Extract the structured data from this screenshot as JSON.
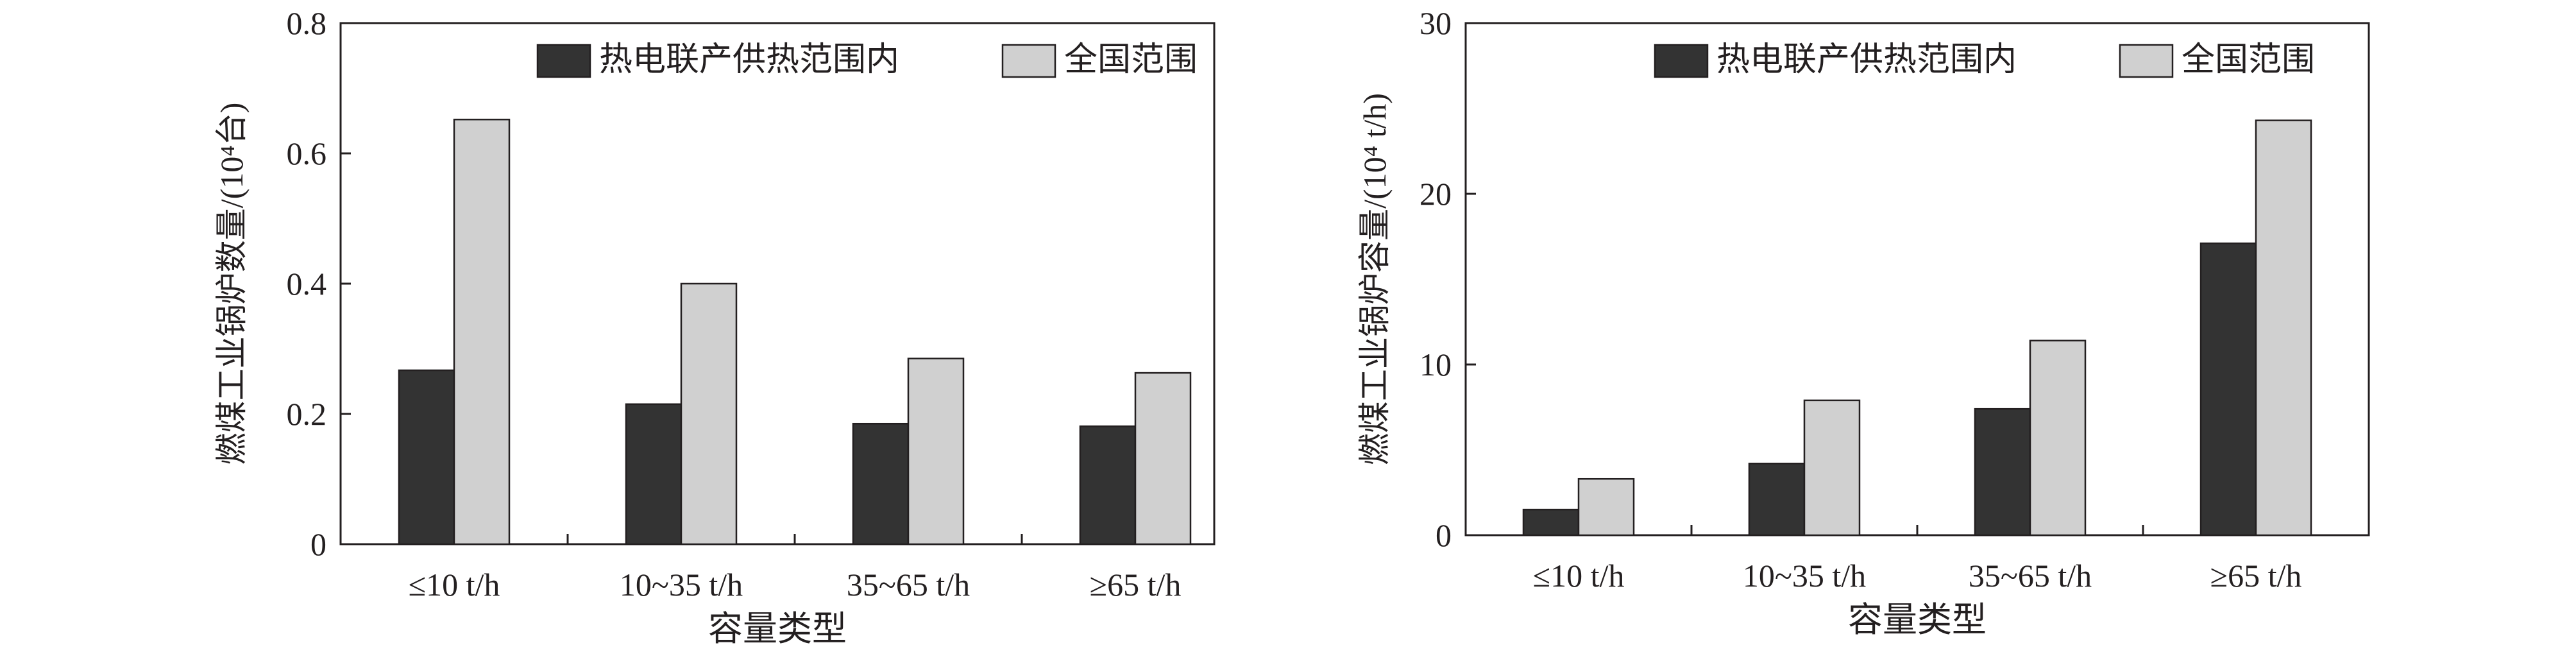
{
  "chart_data": [
    {
      "type": "bar",
      "categories": [
        "≤10 t/h",
        "10~35 t/h",
        "35~65 t/h",
        "≥65 t/h"
      ],
      "series": [
        {
          "name": "热电联产供热范围内",
          "values": [
            0.267,
            0.215,
            0.185,
            0.181
          ],
          "color": "#333333"
        },
        {
          "name": "全国范围",
          "values": [
            0.652,
            0.4,
            0.285,
            0.263
          ],
          "color": "#d0d0d0"
        }
      ],
      "title": "",
      "xlabel": "容量类型",
      "ylabel": "燃煤工业锅炉数量/(10⁴台)",
      "ylim": [
        0,
        0.8
      ],
      "yticks": [
        0,
        0.2,
        0.4,
        0.6,
        0.8
      ],
      "ytick_labels": [
        "0",
        "0.2",
        "0.4",
        "0.6",
        "0.8"
      ],
      "grid": false,
      "legend_position": "top"
    },
    {
      "type": "bar",
      "categories": [
        "≤10 t/h",
        "10~35 t/h",
        "35~65 t/h",
        "≥65 t/h"
      ],
      "series": [
        {
          "name": "热电联产供热范围内",
          "values": [
            1.5,
            4.2,
            7.4,
            17.1
          ],
          "color": "#333333"
        },
        {
          "name": "全国范围",
          "values": [
            3.3,
            7.9,
            11.4,
            24.3
          ],
          "color": "#d0d0d0"
        }
      ],
      "title": "",
      "xlabel": "容量类型",
      "ylabel": "燃煤工业锅炉容量/(10⁴ t/h)",
      "ylim": [
        0,
        30
      ],
      "yticks": [
        0,
        10,
        20,
        30
      ],
      "ytick_labels": [
        "0",
        "10",
        "20",
        "30"
      ],
      "grid": false,
      "legend_position": "top"
    }
  ]
}
